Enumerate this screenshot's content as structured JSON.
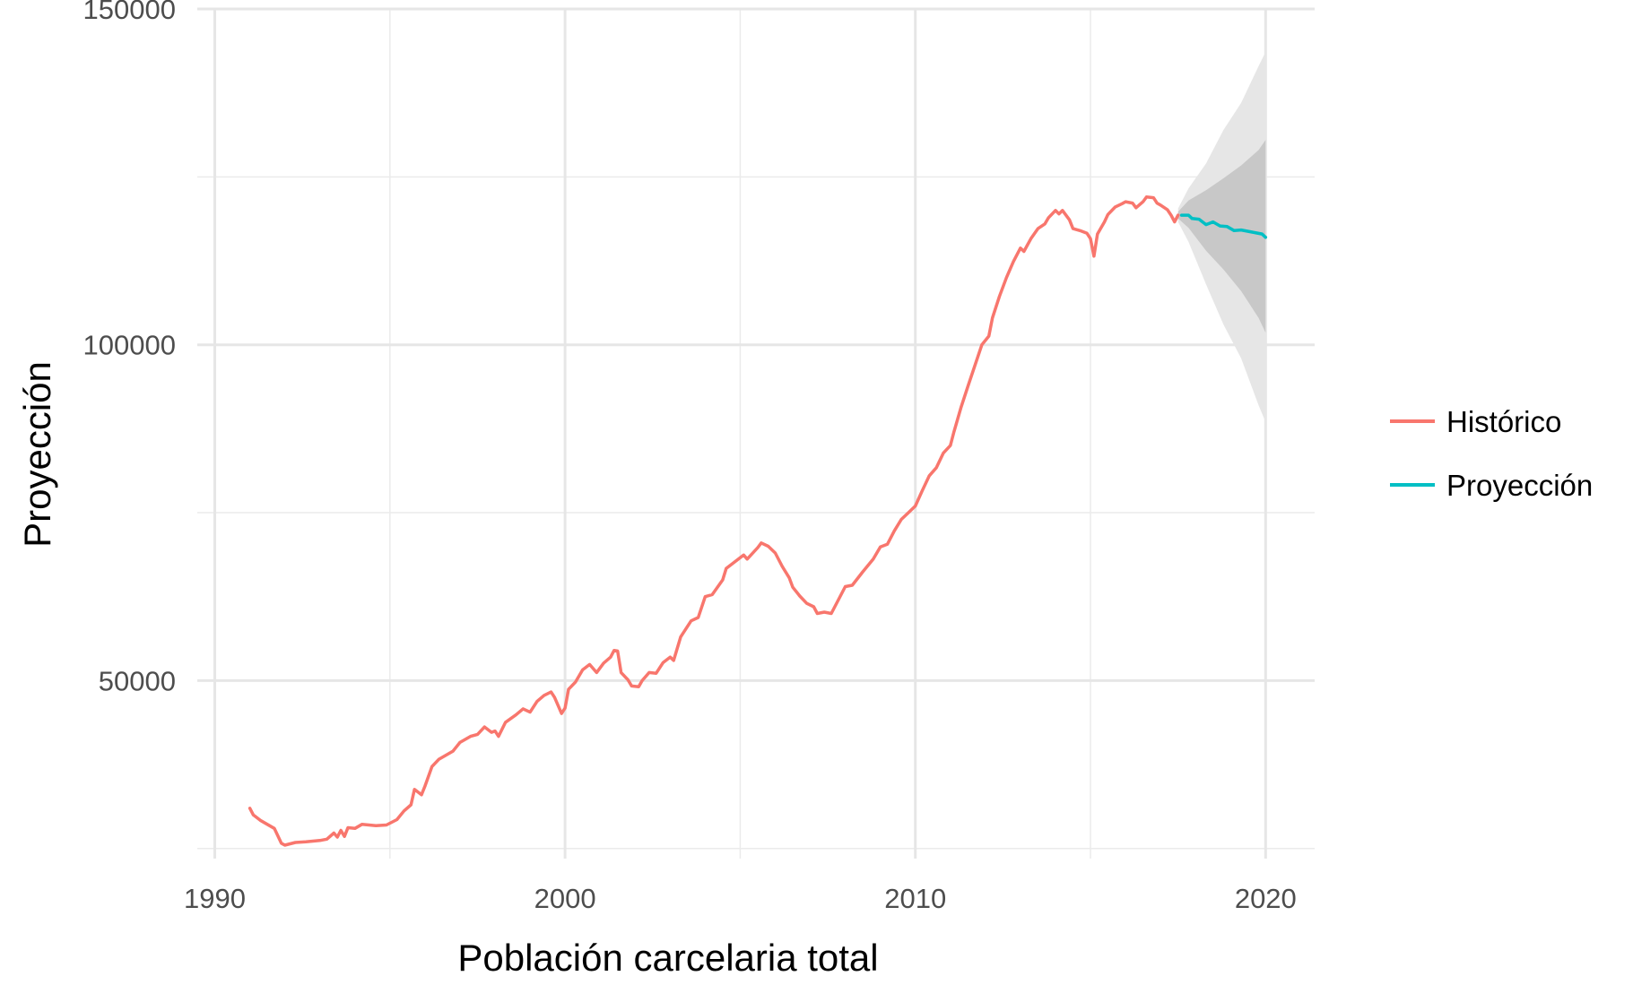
{
  "chart_data": {
    "type": "line",
    "title": "",
    "xlabel": "Población carcelaria total",
    "ylabel": "Proyección",
    "xlim": [
      1989.5,
      2021.4
    ],
    "ylim": [
      23500,
      150000
    ],
    "x_ticks": [
      1990,
      2000,
      2010,
      2020
    ],
    "x_tick_labels": [
      "1990",
      "2000",
      "2010",
      "2020"
    ],
    "x_minor_ticks": [
      1995,
      2005,
      2015
    ],
    "y_ticks": [
      50000,
      100000,
      150000
    ],
    "y_tick_labels": [
      "50000",
      "100000",
      "150000"
    ],
    "y_minor_ticks": [
      25000,
      75000,
      125000
    ],
    "grid": true,
    "legend": {
      "position": "right",
      "entries": [
        {
          "label": "Histórico",
          "color": "#F8766D"
        },
        {
          "label": "Proyección",
          "color": "#00BFC4"
        }
      ]
    },
    "series": [
      {
        "name": "Histórico",
        "color": "#F8766D",
        "points": [
          [
            1991.0,
            31000
          ],
          [
            1991.1,
            30000
          ],
          [
            1991.3,
            29200
          ],
          [
            1991.5,
            28600
          ],
          [
            1991.7,
            28000
          ],
          [
            1991.9,
            25800
          ],
          [
            1992.0,
            25500
          ],
          [
            1992.3,
            25900
          ],
          [
            1992.6,
            26000
          ],
          [
            1993.0,
            26200
          ],
          [
            1993.2,
            26400
          ],
          [
            1993.4,
            27300
          ],
          [
            1993.5,
            26700
          ],
          [
            1993.6,
            27700
          ],
          [
            1993.7,
            26800
          ],
          [
            1993.8,
            28100
          ],
          [
            1994.0,
            28000
          ],
          [
            1994.2,
            28600
          ],
          [
            1994.6,
            28400
          ],
          [
            1994.9,
            28500
          ],
          [
            1995.2,
            29300
          ],
          [
            1995.4,
            30600
          ],
          [
            1995.6,
            31500
          ],
          [
            1995.7,
            33800
          ],
          [
            1995.9,
            33000
          ],
          [
            1996.0,
            34300
          ],
          [
            1996.2,
            37200
          ],
          [
            1996.4,
            38300
          ],
          [
            1996.6,
            38900
          ],
          [
            1996.8,
            39500
          ],
          [
            1997.0,
            40800
          ],
          [
            1997.3,
            41700
          ],
          [
            1997.5,
            42000
          ],
          [
            1997.7,
            43100
          ],
          [
            1997.9,
            42300
          ],
          [
            1998.0,
            42500
          ],
          [
            1998.1,
            41700
          ],
          [
            1998.3,
            43800
          ],
          [
            1998.6,
            44900
          ],
          [
            1998.8,
            45800
          ],
          [
            1999.0,
            45300
          ],
          [
            1999.2,
            46900
          ],
          [
            1999.4,
            47800
          ],
          [
            1999.6,
            48300
          ],
          [
            1999.7,
            47500
          ],
          [
            1999.9,
            45100
          ],
          [
            2000.0,
            45900
          ],
          [
            2000.1,
            48700
          ],
          [
            2000.3,
            49800
          ],
          [
            2000.5,
            51600
          ],
          [
            2000.7,
            52400
          ],
          [
            2000.9,
            51200
          ],
          [
            2001.1,
            52600
          ],
          [
            2001.3,
            53500
          ],
          [
            2001.4,
            54500
          ],
          [
            2001.5,
            54400
          ],
          [
            2001.6,
            51200
          ],
          [
            2001.8,
            50100
          ],
          [
            2001.9,
            49200
          ],
          [
            2002.1,
            49100
          ],
          [
            2002.2,
            50000
          ],
          [
            2002.4,
            51200
          ],
          [
            2002.6,
            51100
          ],
          [
            2002.8,
            52700
          ],
          [
            2003.0,
            53500
          ],
          [
            2003.1,
            53000
          ],
          [
            2003.3,
            56500
          ],
          [
            2003.6,
            58900
          ],
          [
            2003.8,
            59400
          ],
          [
            2004.0,
            62500
          ],
          [
            2004.2,
            62800
          ],
          [
            2004.5,
            65000
          ],
          [
            2004.6,
            66700
          ],
          [
            2004.9,
            67900
          ],
          [
            2005.1,
            68700
          ],
          [
            2005.2,
            68100
          ],
          [
            2005.5,
            69800
          ],
          [
            2005.6,
            70500
          ],
          [
            2005.8,
            70000
          ],
          [
            2006.0,
            69000
          ],
          [
            2006.2,
            67000
          ],
          [
            2006.4,
            65300
          ],
          [
            2006.5,
            63900
          ],
          [
            2006.7,
            62600
          ],
          [
            2006.9,
            61500
          ],
          [
            2007.1,
            61000
          ],
          [
            2007.2,
            60000
          ],
          [
            2007.4,
            60200
          ],
          [
            2007.6,
            60000
          ],
          [
            2007.8,
            62000
          ],
          [
            2008.0,
            64000
          ],
          [
            2008.2,
            64200
          ],
          [
            2008.5,
            66200
          ],
          [
            2008.8,
            68100
          ],
          [
            2009.0,
            69900
          ],
          [
            2009.2,
            70300
          ],
          [
            2009.4,
            72300
          ],
          [
            2009.6,
            74000
          ],
          [
            2009.8,
            75000
          ],
          [
            2010.0,
            76000
          ],
          [
            2010.2,
            78300
          ],
          [
            2010.4,
            80500
          ],
          [
            2010.6,
            81700
          ],
          [
            2010.8,
            83900
          ],
          [
            2011.0,
            85000
          ],
          [
            2011.1,
            87000
          ],
          [
            2011.3,
            90600
          ],
          [
            2011.5,
            93800
          ],
          [
            2011.7,
            96900
          ],
          [
            2011.9,
            100000
          ],
          [
            2012.1,
            101300
          ],
          [
            2012.2,
            104000
          ],
          [
            2012.4,
            107200
          ],
          [
            2012.6,
            110000
          ],
          [
            2012.8,
            112400
          ],
          [
            2013.0,
            114400
          ],
          [
            2013.1,
            113900
          ],
          [
            2013.3,
            115800
          ],
          [
            2013.5,
            117300
          ],
          [
            2013.7,
            118000
          ],
          [
            2013.8,
            118900
          ],
          [
            2014.0,
            120000
          ],
          [
            2014.1,
            119500
          ],
          [
            2014.2,
            120000
          ],
          [
            2014.4,
            118600
          ],
          [
            2014.5,
            117300
          ],
          [
            2014.7,
            117000
          ],
          [
            2014.9,
            116600
          ],
          [
            2015.0,
            115800
          ],
          [
            2015.1,
            113200
          ],
          [
            2015.2,
            116500
          ],
          [
            2015.4,
            118300
          ],
          [
            2015.5,
            119400
          ],
          [
            2015.7,
            120500
          ],
          [
            2015.9,
            121000
          ],
          [
            2016.0,
            121300
          ],
          [
            2016.2,
            121100
          ],
          [
            2016.3,
            120400
          ],
          [
            2016.5,
            121300
          ],
          [
            2016.6,
            122000
          ],
          [
            2016.8,
            121900
          ],
          [
            2016.9,
            121100
          ],
          [
            2017.0,
            120800
          ],
          [
            2017.2,
            120100
          ],
          [
            2017.3,
            119300
          ],
          [
            2017.4,
            118300
          ],
          [
            2017.5,
            119300
          ]
        ]
      },
      {
        "name": "Proyección",
        "color": "#00BFC4",
        "points": [
          [
            2017.6,
            119300
          ],
          [
            2017.8,
            119300
          ],
          [
            2017.9,
            118800
          ],
          [
            2018.1,
            118700
          ],
          [
            2018.3,
            117900
          ],
          [
            2018.5,
            118300
          ],
          [
            2018.7,
            117700
          ],
          [
            2018.9,
            117600
          ],
          [
            2019.1,
            117000
          ],
          [
            2019.3,
            117100
          ],
          [
            2019.5,
            116900
          ],
          [
            2019.7,
            116700
          ],
          [
            2019.9,
            116500
          ],
          [
            2020.0,
            116000
          ]
        ]
      }
    ],
    "prediction_intervals": [
      {
        "level": "80",
        "color": "#c8c8c8",
        "x": [
          2017.5,
          2017.8,
          2018.3,
          2018.8,
          2019.3,
          2019.8,
          2020.0
        ],
        "upper": [
          119800,
          121500,
          123000,
          124800,
          126700,
          129000,
          130500
        ],
        "lower": [
          118800,
          117400,
          114000,
          111200,
          108000,
          104000,
          101800
        ]
      },
      {
        "level": "95",
        "color": "#e6e6e6",
        "x": [
          2017.5,
          2017.8,
          2018.3,
          2018.8,
          2019.3,
          2019.8,
          2020.0
        ],
        "upper": [
          120300,
          123300,
          127000,
          132000,
          136000,
          141500,
          143600
        ],
        "lower": [
          118300,
          115300,
          109000,
          103000,
          98000,
          91000,
          88500
        ]
      }
    ]
  }
}
